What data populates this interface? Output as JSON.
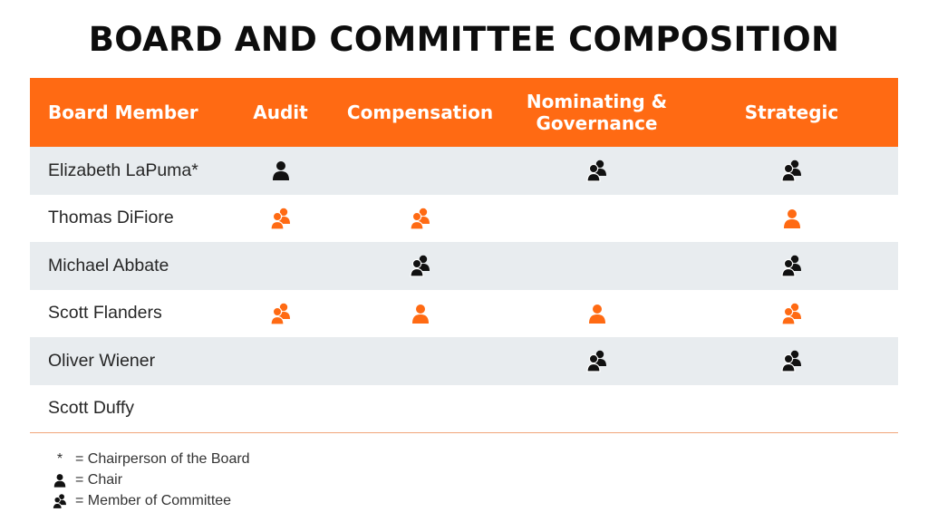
{
  "title": "BOARD AND COMMITTEE COMPOSITION",
  "colors": {
    "accent": "#ff6a13",
    "member_black": "#111111",
    "row_shade": "#e8ecef"
  },
  "table": {
    "headers": [
      "Board Member",
      "Audit",
      "Compensation",
      "Nominating & Governance",
      "Strategic"
    ],
    "rows": [
      {
        "name": "Elizabeth LaPuma*",
        "cells": [
          "chair-black",
          "",
          "member-black",
          "member-black"
        ]
      },
      {
        "name": "Thomas DiFiore",
        "cells": [
          "member-orange",
          "member-orange",
          "",
          "chair-orange"
        ]
      },
      {
        "name": "Michael Abbate",
        "cells": [
          "",
          "member-black",
          "",
          "member-black"
        ]
      },
      {
        "name": "Scott Flanders",
        "cells": [
          "member-orange",
          "chair-orange",
          "chair-orange",
          "member-orange"
        ]
      },
      {
        "name": "Oliver Wiener",
        "cells": [
          "",
          "",
          "member-black",
          "member-black"
        ]
      },
      {
        "name": "Scott Duffy",
        "cells": [
          "",
          "",
          "",
          ""
        ]
      }
    ]
  },
  "legend": {
    "star": "*",
    "star_label": "= Chairperson of the Board",
    "chair_label": "= Chair",
    "member_label": "= Member of Committee"
  }
}
